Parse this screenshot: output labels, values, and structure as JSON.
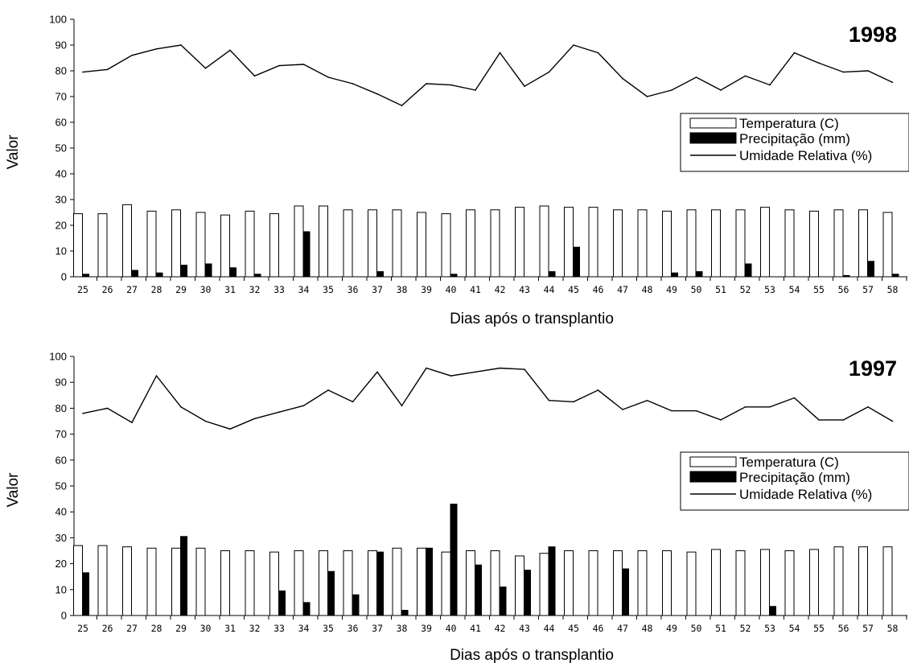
{
  "chart_data": [
    {
      "type": "bar",
      "title": "1998",
      "xlabel": "Dias após o transplantio",
      "ylabel": "Valor",
      "ylim": [
        0,
        100
      ],
      "yticks": [
        0,
        10,
        20,
        30,
        40,
        50,
        60,
        70,
        80,
        90,
        100
      ],
      "categories": [
        "25",
        "26",
        "27",
        "28",
        "29",
        "30",
        "31",
        "32",
        "33",
        "34",
        "35",
        "36",
        "37",
        "38",
        "39",
        "40",
        "41",
        "42",
        "43",
        "44",
        "45",
        "46",
        "47",
        "48",
        "49",
        "50",
        "51",
        "52",
        "53",
        "54",
        "55",
        "56",
        "57",
        "58"
      ],
      "legend_position": "right",
      "series": [
        {
          "name": "Temperatura (C)",
          "kind": "bar",
          "color": "#ffffff",
          "values": [
            24.5,
            24.5,
            28,
            25.5,
            26,
            25,
            24,
            25.5,
            24.5,
            27.5,
            27.5,
            26,
            26,
            26,
            25,
            24.5,
            26,
            26,
            27,
            27.5,
            27,
            27,
            26,
            26,
            25.5,
            26,
            26,
            26,
            27,
            26,
            25.5,
            26,
            26,
            25
          ]
        },
        {
          "name": "Precipitação (mm)",
          "kind": "bar",
          "color": "#000000",
          "values": [
            1,
            0,
            2.5,
            1.5,
            4.5,
            5,
            3.5,
            1,
            0,
            17.5,
            0,
            0,
            2,
            0,
            0,
            1,
            0,
            0,
            0,
            2,
            11.5,
            0,
            0,
            0,
            1.5,
            2,
            0,
            5,
            0,
            0,
            0,
            0.5,
            6,
            1
          ]
        },
        {
          "name": "Umidade Relativa (%)",
          "kind": "line",
          "color": "#000000",
          "values": [
            79.5,
            80.5,
            86,
            88.5,
            90,
            81,
            88,
            78,
            82,
            82.5,
            77.5,
            75,
            71,
            66.5,
            75,
            74.5,
            72.5,
            87,
            74,
            79.5,
            90,
            87,
            77,
            70,
            72.5,
            77.5,
            72.5,
            78,
            74.5,
            87,
            83,
            79.5,
            80,
            75.5
          ]
        }
      ]
    },
    {
      "type": "bar",
      "title": "1997",
      "xlabel": "Dias após o transplantio",
      "ylabel": "Valor",
      "ylim": [
        0,
        100
      ],
      "yticks": [
        0,
        10,
        20,
        30,
        40,
        50,
        60,
        70,
        80,
        90,
        100
      ],
      "categories": [
        "25",
        "26",
        "27",
        "28",
        "29",
        "30",
        "31",
        "32",
        "33",
        "34",
        "35",
        "36",
        "37",
        "38",
        "39",
        "40",
        "41",
        "42",
        "43",
        "44",
        "45",
        "46",
        "47",
        "48",
        "49",
        "50",
        "51",
        "52",
        "53",
        "54",
        "55",
        "56",
        "57",
        "58"
      ],
      "legend_position": "right",
      "series": [
        {
          "name": "Temperatura (C)",
          "kind": "bar",
          "color": "#ffffff",
          "values": [
            27,
            27,
            26.5,
            26,
            26,
            26,
            25,
            25,
            24.5,
            25,
            25,
            25,
            25,
            26,
            26,
            24.5,
            25,
            25,
            23,
            24,
            25,
            25,
            25,
            25,
            25,
            24.5,
            25.5,
            25,
            25.5,
            25,
            25.5,
            26.5,
            26.5,
            26.5
          ]
        },
        {
          "name": "Precipitação (mm)",
          "kind": "bar",
          "color": "#000000",
          "values": [
            16.5,
            0,
            0,
            0,
            30.5,
            0,
            0,
            0,
            9.5,
            5,
            17,
            8,
            24.5,
            2,
            26,
            43,
            19.5,
            11,
            17.5,
            26.5,
            0,
            0,
            18,
            0,
            0,
            0,
            0,
            0,
            3.5,
            0,
            0,
            0,
            0,
            0
          ]
        },
        {
          "name": "Umidade Relativa (%)",
          "kind": "line",
          "color": "#000000",
          "values": [
            78,
            80,
            74.5,
            92.5,
            80.5,
            75,
            72,
            76,
            78.5,
            81,
            87,
            82.5,
            94,
            81,
            95.5,
            92.5,
            94,
            95.5,
            95,
            83,
            82.5,
            87,
            79.5,
            83,
            79,
            79,
            75.5,
            80.5,
            80.5,
            84,
            75.5,
            75.5,
            80.5,
            75
          ]
        }
      ]
    }
  ]
}
